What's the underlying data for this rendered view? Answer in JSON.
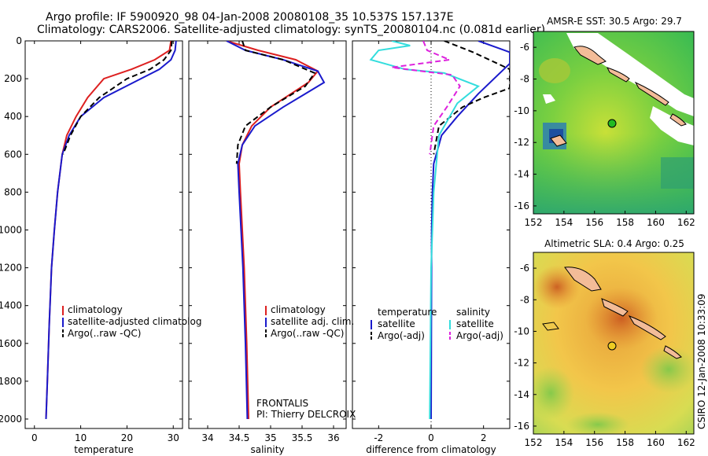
{
  "header": {
    "line1": "Argo profile: IF 5900920_98 04-Jan-2008 20080108_35 10.537S 157.137E",
    "line2": "Climatology: CARS2006. Satellite-adjusted climatology: synTS_20080104.nc (0.081d earlier)"
  },
  "side_label": "CSIRO 12-Jan-2008 10:33:09",
  "colors": {
    "climatology": "#dd2020",
    "satellite": "#1a1acc",
    "argo": "#000000",
    "cyan": "#33dddd",
    "magenta": "#dd22dd"
  },
  "chart_data": [
    {
      "type": "line",
      "panel": "temperature",
      "xlabel": "temperature",
      "ylabel": "",
      "xlim": [
        -2,
        32
      ],
      "ylim": [
        0,
        2050
      ],
      "y_reversed": true,
      "xticks": [
        0,
        10,
        20,
        30
      ],
      "yticks": [
        0,
        200,
        400,
        600,
        800,
        1000,
        1200,
        1400,
        1600,
        1800,
        2000
      ],
      "legend": [
        "climatology",
        "satellite-adjusted climatolog",
        "Argo(..raw -QC)"
      ],
      "series": [
        {
          "name": "climatology",
          "color": "#dd2020",
          "style": "solid",
          "x": [
            29.5,
            29.2,
            26,
            21,
            15,
            11.5,
            9,
            7,
            6,
            5,
            4.3,
            3.7,
            3.2,
            2.8,
            2.5
          ],
          "y": [
            0,
            50,
            100,
            150,
            200,
            300,
            400,
            500,
            600,
            800,
            1000,
            1200,
            1500,
            1800,
            2000
          ]
        },
        {
          "name": "satellite-adjusted climatolog",
          "color": "#1a1acc",
          "style": "solid",
          "x": [
            30.6,
            30.4,
            29.5,
            27,
            23,
            15,
            10,
            7.5,
            6,
            5,
            4.3,
            3.7,
            3.2,
            2.8,
            2.5
          ],
          "y": [
            0,
            50,
            100,
            150,
            200,
            300,
            400,
            500,
            600,
            800,
            1000,
            1200,
            1500,
            1800,
            2000
          ]
        },
        {
          "name": "Argo(..raw -QC)",
          "color": "#000000",
          "style": "dashed",
          "x": [
            29.7,
            29.5,
            28,
            25,
            20,
            14,
            10,
            7.8,
            6.2
          ],
          "y": [
            0,
            50,
            100,
            150,
            200,
            300,
            400,
            500,
            600
          ]
        }
      ]
    },
    {
      "type": "line",
      "panel": "salinity",
      "xlabel": "salinity",
      "ylabel": "",
      "xlim": [
        33.7,
        36.2
      ],
      "ylim": [
        0,
        2050
      ],
      "y_reversed": true,
      "xticks": [
        34,
        34.5,
        35,
        35.5,
        36
      ],
      "yticks": [
        0,
        200,
        400,
        600,
        800,
        1000,
        1200,
        1400,
        1600,
        1800,
        2000
      ],
      "legend": [
        "climatology",
        "satellite adj. clim.",
        "Argo(..raw -QC)"
      ],
      "annotation": [
        "FRONTALIS",
        "PI: Thierry DELCROIX"
      ],
      "series": [
        {
          "name": "climatology",
          "color": "#dd2020",
          "style": "solid",
          "x": [
            34.3,
            34.8,
            35.4,
            35.75,
            35.6,
            35.0,
            34.7,
            34.55,
            34.5,
            34.52,
            34.55,
            34.58,
            34.62,
            34.65
          ],
          "y": [
            0,
            50,
            100,
            160,
            220,
            350,
            450,
            550,
            650,
            800,
            1000,
            1200,
            1600,
            2000
          ]
        },
        {
          "name": "satellite adj. clim.",
          "color": "#1a1acc",
          "style": "solid",
          "x": [
            34.3,
            34.6,
            35.2,
            35.75,
            35.85,
            35.2,
            34.75,
            34.55,
            34.48,
            34.5,
            34.53,
            34.56,
            34.6,
            34.63
          ],
          "y": [
            0,
            50,
            100,
            160,
            220,
            350,
            450,
            550,
            650,
            800,
            1000,
            1200,
            1600,
            2000
          ]
        },
        {
          "name": "Argo(..raw -QC)",
          "color": "#000000",
          "style": "dashed",
          "x": [
            34.55,
            34.6,
            35.2,
            35.7,
            35.55,
            35.0,
            34.6,
            34.48,
            34.46
          ],
          "y": [
            0,
            50,
            100,
            170,
            240,
            350,
            450,
            550,
            650
          ]
        }
      ]
    },
    {
      "type": "line",
      "panel": "difference",
      "xlabel": "difference from climatology",
      "ylabel": "",
      "xlim": [
        -3,
        3
      ],
      "ylim": [
        0,
        2050
      ],
      "y_reversed": true,
      "xticks": [
        -2,
        0,
        2
      ],
      "yticks": [
        0,
        200,
        400,
        600,
        800,
        1000,
        1200,
        1400,
        1600,
        1800,
        2000
      ],
      "legend_left_title": "temperature",
      "legend_right_title": "salinity",
      "legend": [
        "satellite",
        "Argo(-adj)",
        "satellite",
        "Argo(-adj)"
      ],
      "series": [
        {
          "name": "satellite",
          "group": "temperature",
          "color": "#1a1acc",
          "style": "solid",
          "x": [
            1.8,
            3.0,
            3.0,
            1.8,
            1.0,
            0.4,
            0.1,
            0.05,
            0.02,
            0.0
          ],
          "y": [
            0,
            60,
            120,
            280,
            400,
            500,
            650,
            800,
            1000,
            2000
          ]
        },
        {
          "name": "Argo(-adj)",
          "group": "temperature",
          "color": "#000000",
          "style": "dashed",
          "x": [
            0.5,
            1.6,
            3.0,
            3.0,
            2.0,
            1.2,
            0.3,
            0.1
          ],
          "y": [
            0,
            60,
            150,
            250,
            300,
            350,
            450,
            600
          ]
        },
        {
          "name": "satellite",
          "group": "salinity",
          "color": "#33dddd",
          "style": "solid",
          "x": [
            -1.5,
            -0.8,
            -2.0,
            -2.3,
            -1.0,
            0.5,
            1.8,
            1.0,
            0.3,
            0.1,
            0.0,
            -0.05
          ],
          "y": [
            0,
            25,
            50,
            100,
            150,
            170,
            240,
            330,
            500,
            800,
            1200,
            2000
          ]
        },
        {
          "name": "Argo(-adj)",
          "group": "salinity",
          "color": "#dd22dd",
          "style": "dashed",
          "x": [
            -0.3,
            -0.15,
            0.7,
            -1.5,
            0.8,
            1.1,
            0.6,
            0.1,
            -0.05
          ],
          "y": [
            0,
            50,
            100,
            140,
            180,
            240,
            350,
            450,
            600
          ]
        }
      ]
    },
    {
      "type": "heatmap",
      "panel": "sst_map",
      "title": "AMSR-E SST: 30.5 Argo: 29.7",
      "xlim": [
        152,
        162.5
      ],
      "ylim": [
        -16.5,
        -5
      ],
      "xticks": [
        152,
        154,
        156,
        158,
        160,
        162
      ],
      "yticks": [
        -6,
        -8,
        -10,
        -12,
        -14,
        -16
      ],
      "marker": {
        "lon": 157.137,
        "lat": -10.537,
        "color": "#22bb22"
      }
    },
    {
      "type": "heatmap",
      "panel": "sla_map",
      "title": "Altimetric SLA: 0.4 Argo: 0.25",
      "xlim": [
        152,
        162.5
      ],
      "ylim": [
        -16.5,
        -5
      ],
      "xticks": [
        152,
        154,
        156,
        158,
        160,
        162
      ],
      "yticks": [
        -6,
        -8,
        -10,
        -12,
        -14,
        -16
      ],
      "marker": {
        "lon": 157.137,
        "lat": -10.537,
        "color": "#eecc22"
      }
    }
  ]
}
